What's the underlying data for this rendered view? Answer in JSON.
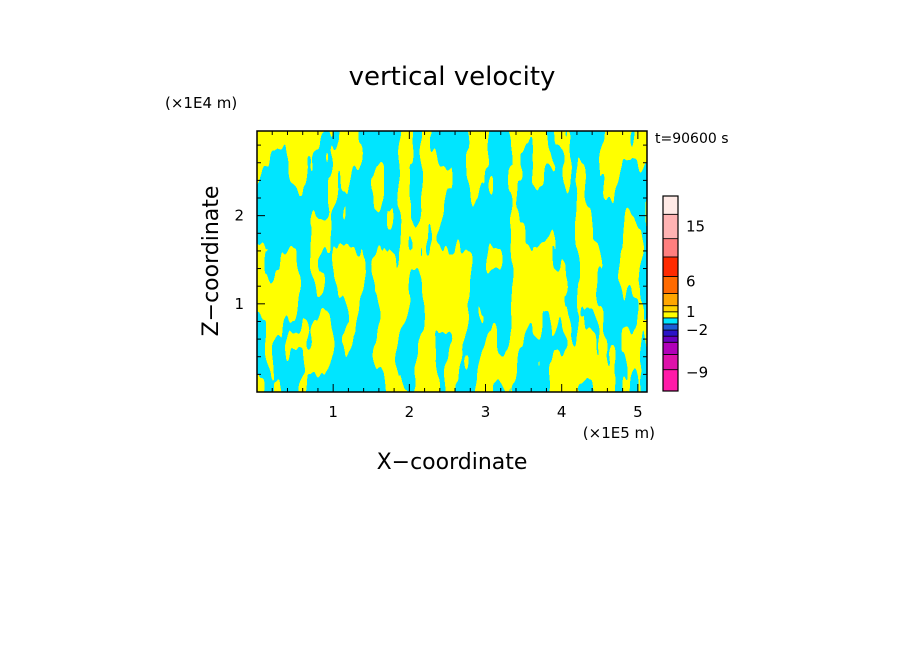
{
  "chart_data": {
    "type": "heatmap",
    "title": "vertical velocity",
    "xlabel": "X−coordinate",
    "ylabel": "Z−coordinate",
    "x_scale_label": "(×1E5 m)",
    "y_scale_label": "(×1E4 m)",
    "time_label": "t=90600 s",
    "xlim": [
      0,
      5.12
    ],
    "ylim": [
      0,
      2.96
    ],
    "x_ticks": [
      {
        "value": 1,
        "label": "1"
      },
      {
        "value": 2,
        "label": "2"
      },
      {
        "value": 3,
        "label": "3"
      },
      {
        "value": 4,
        "label": "4"
      },
      {
        "value": 5,
        "label": "5"
      }
    ],
    "y_ticks": [
      {
        "value": 1,
        "label": "1"
      },
      {
        "value": 2,
        "label": "2"
      }
    ],
    "dominant_colors": {
      "positive": "#ffff00",
      "negative": "#00e5ff"
    },
    "colorbar": {
      "levels": [
        {
          "color": "#ff1aa8"
        },
        {
          "color": "#dd11aa"
        },
        {
          "color": "#b100b8"
        },
        {
          "color": "#6a00c0"
        },
        {
          "color": "#2a14c8"
        },
        {
          "color": "#1d5cd6"
        },
        {
          "color": "#00e5ff"
        },
        {
          "color": "#ffff00"
        },
        {
          "color": "#ffd400"
        },
        {
          "color": "#ffa600"
        },
        {
          "color": "#ff6a00"
        },
        {
          "color": "#ff2a00"
        },
        {
          "color": "#ff7f7f"
        },
        {
          "color": "#ffb3b3"
        },
        {
          "color": "#ffeae6"
        }
      ],
      "labels": [
        {
          "text": "15",
          "at": 15
        },
        {
          "text": "6",
          "at": 6
        },
        {
          "text": "1",
          "at": 1
        },
        {
          "text": "−2",
          "at": -2
        },
        {
          "text": "−9",
          "at": -9
        }
      ]
    }
  }
}
